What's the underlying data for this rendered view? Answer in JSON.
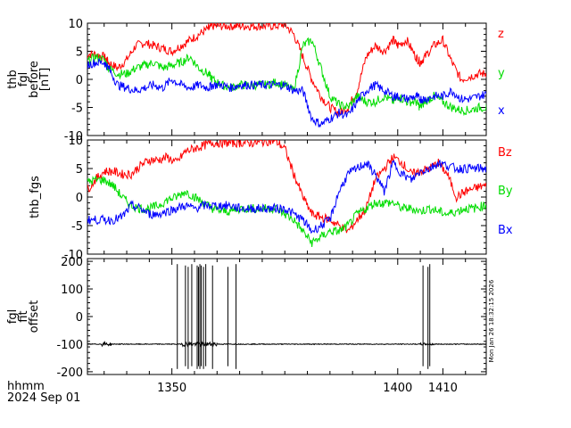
{
  "chart_data": [
    {
      "type": "line",
      "ylabel": [
        "thb",
        "fgl",
        "before",
        "[nT]"
      ],
      "ylim": [
        -10,
        10
      ],
      "yticks": [
        -10,
        -5,
        0,
        5,
        10
      ],
      "series": [
        {
          "name": "z",
          "color": "#ff0000",
          "x": [
            1331,
            1333,
            1335,
            1336,
            1338,
            1340,
            1342,
            1344,
            1346,
            1348,
            1350,
            1352,
            1354,
            1356,
            1358,
            1359,
            1361,
            1363,
            1365,
            1367,
            1369,
            1371,
            1373,
            1375,
            1377,
            1379,
            1381,
            1383,
            1385,
            1387,
            1389,
            1391,
            1393,
            1395,
            1397,
            1399,
            1400,
            1402,
            1404,
            1405,
            1406,
            1408,
            1410,
            1412,
            1414,
            1416,
            1418,
            1420,
            1422
          ],
          "values": [
            4.5,
            4.5,
            4,
            3,
            2,
            3.5,
            6,
            6.5,
            6,
            5.5,
            5,
            6,
            7,
            8,
            9,
            9.5,
            9.5,
            9.5,
            9.5,
            9.5,
            9.5,
            9.5,
            9.5,
            9.8,
            8,
            4,
            0,
            -3,
            -5,
            -6,
            -5,
            -2,
            4,
            6,
            5,
            7,
            6,
            7,
            4,
            3,
            4,
            6,
            7,
            3,
            0,
            0.5,
            1,
            1,
            2
          ]
        },
        {
          "name": "y",
          "color": "#00dd00",
          "x": [
            1331,
            1333,
            1335,
            1336,
            1338,
            1340,
            1342,
            1344,
            1346,
            1348,
            1350,
            1352,
            1354,
            1356,
            1358,
            1359,
            1361,
            1363,
            1365,
            1367,
            1369,
            1371,
            1373,
            1375,
            1377,
            1379,
            1381,
            1383,
            1385,
            1387,
            1389,
            1391,
            1393,
            1395,
            1397,
            1399,
            1400,
            1402,
            1404,
            1405,
            1406,
            1408,
            1410,
            1412,
            1414,
            1416,
            1418,
            1420,
            1422
          ],
          "values": [
            3,
            4,
            3.5,
            2,
            1,
            1,
            2,
            2.5,
            3,
            2,
            2.5,
            3,
            4,
            2,
            1,
            0,
            -1,
            -1.5,
            -1,
            -1,
            -1,
            -1,
            -0.5,
            -1,
            -2,
            6,
            7,
            2,
            -3,
            -4.5,
            -5,
            -3,
            -4,
            -4,
            -3,
            -4,
            -3,
            -4,
            -4,
            -5,
            -4,
            -3,
            -4,
            -5,
            -5.5,
            -5.5,
            -5,
            -5,
            -5
          ]
        },
        {
          "name": "x",
          "color": "#0000ff",
          "x": [
            1331,
            1333,
            1335,
            1336,
            1338,
            1340,
            1342,
            1344,
            1346,
            1348,
            1350,
            1352,
            1354,
            1356,
            1358,
            1359,
            1361,
            1363,
            1365,
            1367,
            1369,
            1371,
            1373,
            1375,
            1377,
            1379,
            1381,
            1383,
            1385,
            1387,
            1389,
            1391,
            1393,
            1395,
            1397,
            1399,
            1400,
            1402,
            1404,
            1405,
            1406,
            1408,
            1410,
            1412,
            1414,
            1416,
            1418,
            1420,
            1422
          ],
          "values": [
            2.5,
            3,
            3,
            2,
            -1,
            -1.5,
            -2,
            -1.5,
            -1,
            -1.5,
            0,
            -1,
            -1.5,
            -1,
            -1.5,
            -1,
            -1,
            -1.5,
            -1,
            -1,
            -1,
            -1,
            -1,
            -1,
            -2,
            -2,
            -7,
            -8,
            -7,
            -6,
            -6.5,
            -4,
            -2,
            -1,
            -2,
            -3,
            -3,
            -3.5,
            -3,
            -3.5,
            -3.5,
            -3,
            -3,
            -2,
            -3.5,
            -3.5,
            -3,
            -2.5,
            -2
          ]
        }
      ],
      "legend": [
        "z",
        "y",
        "x"
      ]
    },
    {
      "type": "line",
      "ylabel": [
        "thb_fgs"
      ],
      "ylim": [
        -10,
        10
      ],
      "yticks": [
        -10,
        -5,
        0,
        5,
        10
      ],
      "series": [
        {
          "name": "Bz",
          "color": "#ff0000",
          "x": [
            1331,
            1333,
            1335,
            1337,
            1339,
            1341,
            1343,
            1345,
            1347,
            1349,
            1351,
            1353,
            1355,
            1357,
            1359,
            1361,
            1363,
            1365,
            1367,
            1369,
            1371,
            1373,
            1375,
            1377,
            1379,
            1381,
            1383,
            1385,
            1387,
            1389,
            1391,
            1393,
            1395,
            1397,
            1399,
            1401,
            1403,
            1405,
            1407,
            1409,
            1411,
            1413,
            1415,
            1417,
            1419,
            1421,
            1422
          ],
          "values": [
            1,
            3,
            4.5,
            4.5,
            4,
            4,
            5.5,
            6.5,
            6.5,
            7,
            6,
            8,
            8.5,
            9,
            9.5,
            9.5,
            9.5,
            9.5,
            9.5,
            9.5,
            9.8,
            9.8,
            8.5,
            4,
            0,
            -3,
            -3.5,
            -4,
            -5,
            -6,
            -4,
            -2,
            3,
            5,
            7,
            6,
            4,
            4.5,
            5,
            6,
            4,
            0,
            1,
            1.5,
            2,
            1.5,
            2
          ]
        },
        {
          "name": "By",
          "color": "#00dd00",
          "x": [
            1331,
            1333,
            1335,
            1337,
            1339,
            1341,
            1343,
            1345,
            1347,
            1349,
            1351,
            1353,
            1355,
            1357,
            1359,
            1361,
            1363,
            1365,
            1367,
            1369,
            1371,
            1373,
            1375,
            1377,
            1379,
            1381,
            1383,
            1385,
            1387,
            1389,
            1391,
            1393,
            1395,
            1397,
            1399,
            1401,
            1403,
            1405,
            1407,
            1409,
            1411,
            1413,
            1415,
            1417,
            1419,
            1421,
            1422
          ],
          "values": [
            2.5,
            3,
            3,
            2,
            0,
            -1.5,
            -2,
            -2,
            -1.5,
            -0.5,
            0,
            1,
            0,
            -1,
            -2,
            -2.5,
            -2.5,
            -2,
            -2,
            -2,
            -2,
            -2,
            -3,
            -4,
            -6,
            -8,
            -7,
            -6,
            -6,
            -5,
            -3,
            -2,
            -1,
            -1,
            -1,
            -2,
            -2,
            -2.5,
            -2,
            -2.5,
            -3,
            -2.5,
            -2,
            -2,
            -1.5,
            -1.5,
            -1.5
          ]
        },
        {
          "name": "Bx",
          "color": "#0000ff",
          "x": [
            1331,
            1333,
            1335,
            1337,
            1339,
            1341,
            1343,
            1345,
            1347,
            1349,
            1351,
            1353,
            1355,
            1357,
            1359,
            1361,
            1363,
            1365,
            1367,
            1369,
            1371,
            1373,
            1375,
            1377,
            1379,
            1381,
            1383,
            1385,
            1387,
            1389,
            1391,
            1393,
            1395,
            1397,
            1399,
            1401,
            1403,
            1405,
            1407,
            1409,
            1411,
            1413,
            1415,
            1417,
            1419,
            1421,
            1422
          ],
          "values": [
            -4,
            -4,
            -4,
            -4,
            -3.5,
            -1.5,
            -2,
            -3,
            -3,
            -2.5,
            -2,
            -1.5,
            -2,
            -1.5,
            -1.5,
            -1.5,
            -1.5,
            -2,
            -2,
            -2,
            -2,
            -2,
            -2,
            -3,
            -4,
            -6,
            -5,
            -4,
            1,
            4,
            5,
            6,
            4,
            1,
            6,
            4,
            3,
            4.5,
            5,
            6,
            5.5,
            5,
            5,
            5,
            5,
            5,
            5
          ]
        }
      ],
      "legend": [
        "Bz",
        "By",
        "Bx"
      ]
    },
    {
      "type": "line",
      "ylabel": [
        "fgl",
        "fit",
        "offset"
      ],
      "ylim": [
        -210,
        210
      ],
      "yticks": [
        -200,
        -100,
        0,
        100,
        200
      ],
      "baseline": -100,
      "series": [
        {
          "name": "offset",
          "color": "#000000",
          "spikes_at": [
            1351.2,
            1353.0,
            1353.6,
            1354.4,
            1355.6,
            1355.9,
            1356.2,
            1356.5,
            1357.0,
            1357.5,
            1359.0,
            1362.4,
            1364.2,
            1405.6,
            1406.7,
            1407.1
          ],
          "spike_top": 190,
          "spike_bottom": -190
        }
      ]
    }
  ],
  "x_axis": {
    "range": [
      1331.3,
      1419.6
    ],
    "ticks": [
      1350,
      1400,
      1410
    ],
    "tick_labels": [
      "1350",
      "1400",
      "1410"
    ],
    "label_line1": "hhmm",
    "label_line2": "2024 Sep 01"
  },
  "stamp": "Mon Jan 26 18:32:15 2026"
}
